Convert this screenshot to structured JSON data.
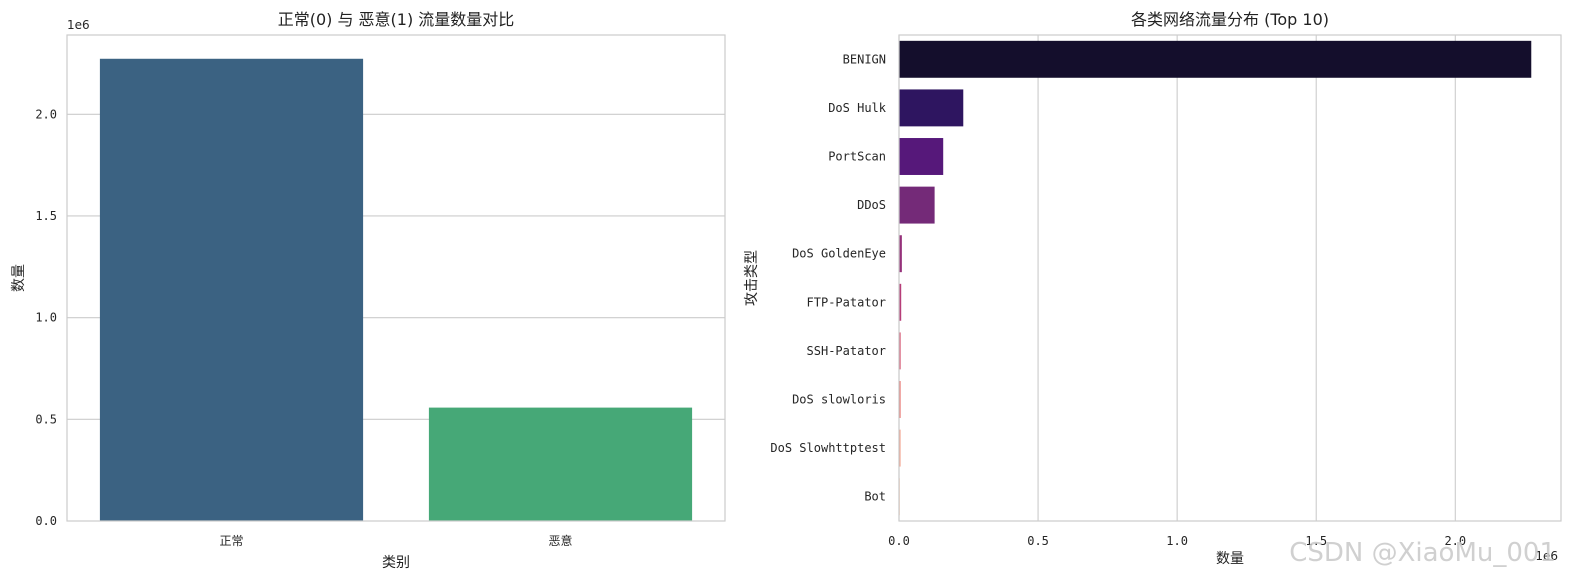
{
  "watermark": "CSDN @XiaoMu_001",
  "chart_data": [
    {
      "type": "bar",
      "orientation": "vertical",
      "title": "正常(0) 与 恶意(1) 流量数量对比",
      "xlabel": "类别",
      "ylabel": "数量",
      "categories": [
        "正常",
        "恶意"
      ],
      "values": [
        2273097,
        557646
      ],
      "colors": [
        "#3b6282",
        "#46a877"
      ],
      "ylim": [
        0,
        2390000
      ],
      "yticks": [
        0.0,
        0.5,
        1.0,
        1.5,
        2.0
      ],
      "ytick_labels": [
        "0.0",
        "0.5",
        "1.0",
        "1.5",
        "2.0"
      ],
      "tick_scale": 1000000,
      "offset_label": "1e6",
      "grid": "y"
    },
    {
      "type": "bar",
      "orientation": "horizontal",
      "title": "各类网络流量分布 (Top 10)",
      "xlabel": "数量",
      "ylabel": "攻击类型",
      "categories": [
        "BENIGN",
        "DoS Hulk",
        "PortScan",
        "DDoS",
        "DoS GoldenEye",
        "FTP-Patator",
        "SSH-Patator",
        "DoS slowloris",
        "DoS Slowhttptest",
        "Bot"
      ],
      "values": [
        2273097,
        231073,
        158930,
        128027,
        10293,
        7938,
        5897,
        5796,
        5499,
        1966
      ],
      "colors": [
        "#140e2c",
        "#2e1560",
        "#56187a",
        "#742a78",
        "#95317a",
        "#b63d78",
        "#d45672",
        "#e8736f",
        "#f29a84",
        "#f8c4a8"
      ],
      "xlim": [
        0,
        2380000
      ],
      "xticks": [
        0.0,
        0.5,
        1.0,
        1.5,
        2.0
      ],
      "xtick_labels": [
        "0.0",
        "0.5",
        "1.0",
        "1.5",
        "2.0"
      ],
      "tick_scale": 1000000,
      "offset_label": "1e6",
      "grid": "x"
    }
  ]
}
